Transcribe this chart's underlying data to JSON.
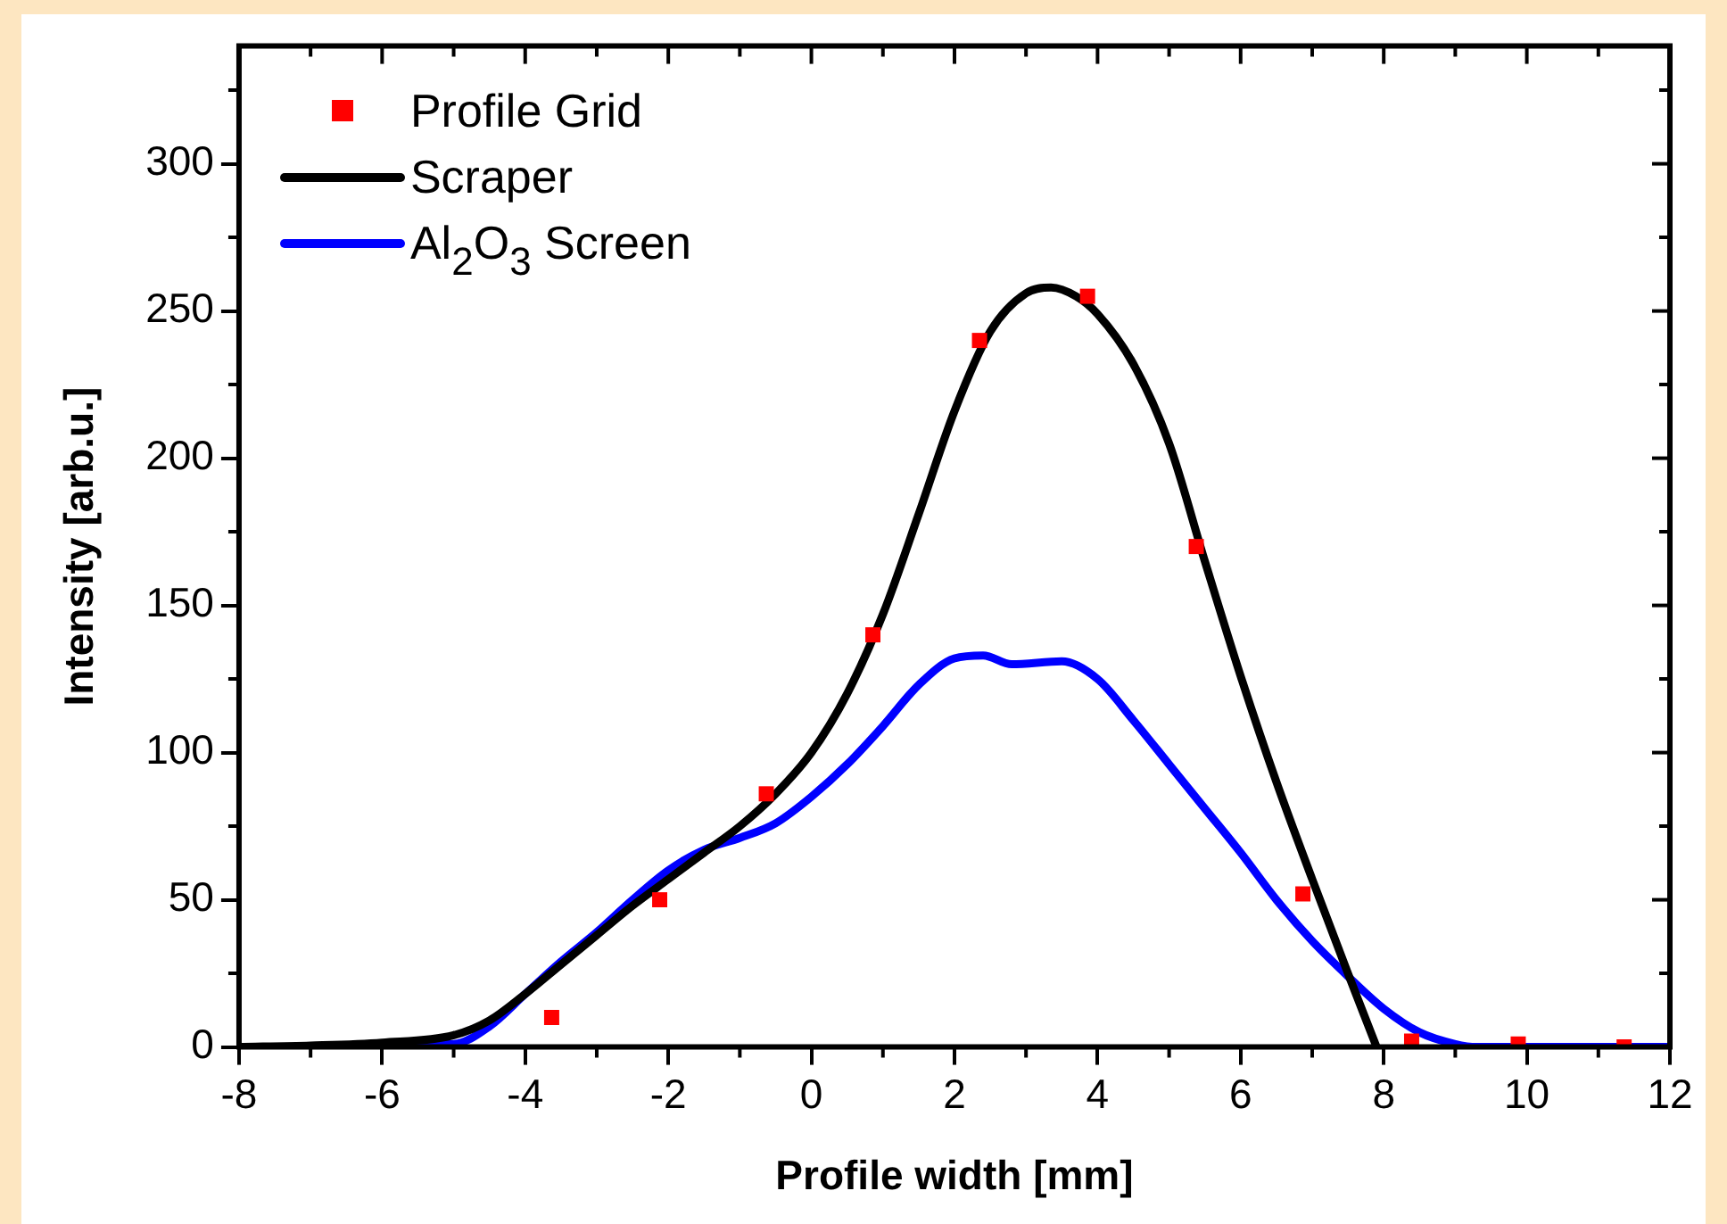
{
  "chart_data": {
    "type": "line",
    "xlabel": "Profile width [mm]",
    "ylabel": "Intensity [arb.u.]",
    "xlim": [
      -8,
      12
    ],
    "xticks": [
      -8,
      -6,
      -4,
      -2,
      0,
      2,
      4,
      6,
      8,
      10,
      12
    ],
    "ylim": [
      0,
      340
    ],
    "yticks": [
      0,
      50,
      100,
      150,
      200,
      250,
      300
    ],
    "grid": false,
    "legend": "top left",
    "series": [
      {
        "name": "Profile Grid",
        "type": "scatter",
        "marker": "square",
        "color": "#ff0000",
        "x": [
          -3.63,
          -2.12,
          -0.63,
          0.86,
          2.35,
          3.86,
          5.38,
          6.87,
          8.39,
          9.88,
          11.36
        ],
        "values": [
          10,
          50,
          86,
          140,
          240,
          255,
          170,
          52,
          2,
          1,
          0
        ]
      },
      {
        "name": "Scraper",
        "marker": "none",
        "color": "#000000",
        "x": [
          -8,
          -7,
          -6,
          -5,
          -4.5,
          -4,
          -3.5,
          -3,
          -2.5,
          -2,
          -1.5,
          -1,
          -0.5,
          0,
          0.5,
          1,
          1.5,
          2,
          2.5,
          3,
          3.35,
          3.7,
          4,
          4.5,
          5,
          5.5,
          6,
          6.5,
          7,
          7.5,
          7.9
        ],
        "values": [
          0,
          0.5,
          1.5,
          4,
          9,
          18,
          28,
          38,
          48,
          57,
          66,
          75,
          86,
          100,
          120,
          147,
          181,
          216,
          243,
          256,
          258,
          255,
          249,
          232,
          205,
          165,
          126,
          90,
          57,
          25,
          0
        ]
      },
      {
        "name": "Al$_{2}$O$_{3}$ Screen",
        "marker": "none",
        "color": "#0000ff",
        "x": [
          -8,
          -5,
          -4.5,
          -4,
          -3.5,
          -3,
          -2.5,
          -2,
          -1.5,
          -1,
          -0.5,
          0,
          0.5,
          1,
          1.5,
          2,
          2.4,
          2.8,
          3.5,
          4,
          4.5,
          5,
          5.5,
          6,
          6.5,
          7,
          7.5,
          8,
          8.5,
          9,
          9.3,
          12
        ],
        "values": [
          0,
          1,
          7,
          18,
          29,
          39,
          50,
          60,
          67,
          71,
          76,
          85,
          96,
          109,
          123,
          132,
          133,
          130,
          131,
          125,
          111,
          96,
          81,
          66,
          50,
          36,
          24,
          13,
          5,
          1,
          0,
          0
        ]
      }
    ]
  }
}
